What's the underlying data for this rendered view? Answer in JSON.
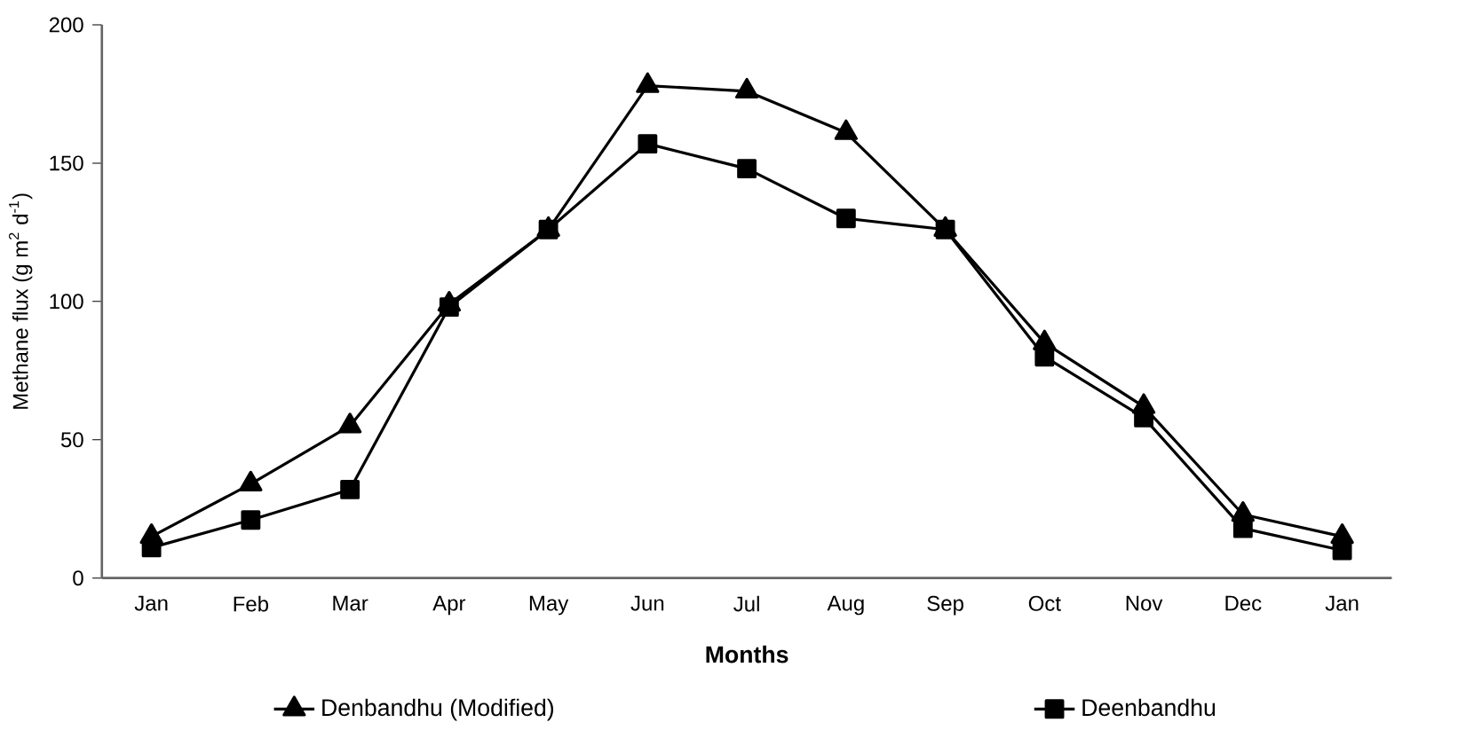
{
  "chart_data": {
    "type": "line",
    "xlabel": "Months",
    "ylabel": "Methane flux (g m$^{2}$ d$^{-1}$)",
    "categories": [
      "Jan",
      "Feb",
      "Mar",
      "Apr",
      "May",
      "Jun",
      "Jul",
      "Aug",
      "Sep",
      "Oct",
      "Nov",
      "Dec",
      "Jan"
    ],
    "series": [
      {
        "name": "Denbandhu (Modified)",
        "color": "#000000",
        "marker": "triangle",
        "values": [
          15,
          34,
          55,
          99,
          126,
          178,
          176,
          161,
          126,
          85,
          62,
          23,
          15
        ]
      },
      {
        "name": "Deenbandhu",
        "color": "#000000",
        "marker": "square",
        "values": [
          11,
          21,
          32,
          98,
          126,
          157,
          148,
          130,
          126,
          80,
          58,
          18,
          10
        ]
      }
    ],
    "ylim": [
      0,
      200
    ],
    "yticks": [
      0,
      50,
      100,
      150,
      200
    ],
    "grid": false,
    "legend": "bottom",
    "line_style": "solid"
  }
}
